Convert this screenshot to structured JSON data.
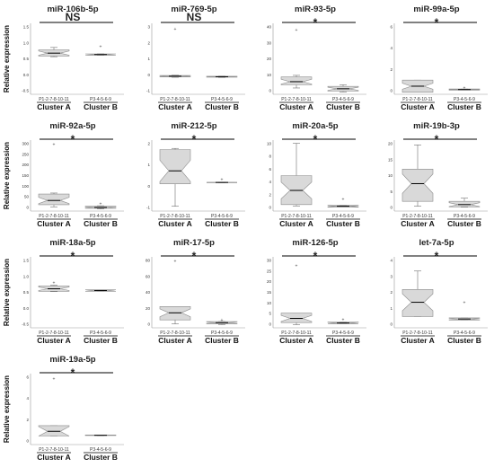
{
  "panels": [
    {
      "title": "miR-106b-5p",
      "sig": "NS",
      "yticks": [
        "1.5",
        "1.0",
        "0.5",
        "0.0",
        "-0.5"
      ],
      "ylim": [
        -0.5,
        1.5
      ],
      "boxes": [
        {
          "q1": 0.58,
          "q3": 0.75,
          "med": 0.66,
          "lo": 0.56,
          "hi": 0.82,
          "notch": 0.06
        },
        {
          "q1": 0.6,
          "q3": 0.64,
          "med": 0.62,
          "lo": 0.6,
          "hi": 0.64,
          "notch": 0.02
        }
      ],
      "outliers": [
        [
          1,
          0.85
        ]
      ],
      "ylabel": "Relative expression",
      "groups": [
        "P1-2-7-8-10-11",
        "P3-4-5-6-9"
      ],
      "clusters": [
        "Cluster A",
        "Cluster B"
      ]
    },
    {
      "title": "miR-769-5p",
      "sig": "NS",
      "yticks": [
        "3",
        "2",
        "1",
        "0",
        "-1"
      ],
      "ylim": [
        -1,
        3
      ],
      "boxes": [
        {
          "q1": -0.02,
          "q3": 0.06,
          "med": 0.02,
          "lo": -0.04,
          "hi": 0.08,
          "notch": 0.02
        },
        {
          "q1": -0.04,
          "q3": 0.02,
          "med": -0.01,
          "lo": -0.05,
          "hi": 0.03,
          "notch": 0.02
        }
      ],
      "outliers": [
        [
          0,
          2.7
        ]
      ],
      "ylabel": "",
      "groups": [
        "P1-2-7-8-10-11",
        "P3-4-5-6-9"
      ],
      "clusters": [
        "Cluster A",
        "Cluster B"
      ]
    },
    {
      "title": "miR-93-5p",
      "sig": "*",
      "yticks": [
        "40",
        "30",
        "20",
        "10",
        "0"
      ],
      "ylim": [
        -3,
        42
      ],
      "boxes": [
        {
          "q1": 3,
          "q3": 8,
          "med": 5,
          "lo": 1,
          "hi": 9,
          "notch": 1.5
        },
        {
          "q1": -1,
          "q3": 2,
          "med": 0.5,
          "lo": -1.5,
          "hi": 3,
          "notch": 1
        }
      ],
      "outliers": [
        [
          0,
          38
        ]
      ],
      "ylabel": "",
      "groups": [
        "P1-2-7-8-10-11",
        "P3-4-5-6-9"
      ],
      "clusters": [
        "Cluster A",
        "Cluster B"
      ]
    },
    {
      "title": "miR-99a-5p",
      "sig": "*",
      "yticks": [
        "6",
        "4",
        "2",
        "0"
      ],
      "ylim": [
        -0.5,
        6.5
      ],
      "boxes": [
        {
          "q1": -0.3,
          "q3": 0.9,
          "med": 0.3,
          "lo": -0.3,
          "hi": 0.9,
          "notch": 0.3
        },
        {
          "q1": -0.08,
          "q3": 0.02,
          "med": -0.03,
          "lo": -0.08,
          "hi": 0.02,
          "notch": 0.02
        }
      ],
      "outliers": [
        [
          1,
          0.15
        ]
      ],
      "ylabel": "",
      "groups": [
        "P1-2-7-8-10-11",
        "P3-4-5-6-9"
      ],
      "clusters": [
        "Cluster A",
        "Cluster B"
      ]
    },
    {
      "title": "miR-92a-5p",
      "sig": "*",
      "yticks": [
        "300",
        "250",
        "200",
        "150",
        "100",
        "50",
        "0"
      ],
      "ylim": [
        -15,
        320
      ],
      "boxes": [
        {
          "q1": 15,
          "q3": 65,
          "med": 35,
          "lo": 5,
          "hi": 70,
          "notch": 15
        },
        {
          "q1": -2,
          "q3": 8,
          "med": 2,
          "lo": -5,
          "hi": 10,
          "notch": 3
        }
      ],
      "outliers": [
        [
          0,
          300
        ],
        [
          1,
          20
        ]
      ],
      "ylabel": "Relative expression",
      "groups": [
        "P1-2-7-8-10-11",
        "P3-4-5-6-9"
      ],
      "clusters": [
        "Cluster A",
        "Cluster B"
      ]
    },
    {
      "title": "miR-212-5p",
      "sig": "*",
      "yticks": [
        "2",
        "1",
        "0",
        "-1"
      ],
      "ylim": [
        -1,
        2
      ],
      "boxes": [
        {
          "q1": 0.15,
          "q3": 1.6,
          "med": 0.7,
          "lo": -0.8,
          "hi": 1.65,
          "notch": 0.45
        },
        {
          "q1": 0.2,
          "q3": 0.22,
          "med": 0.21,
          "lo": 0.2,
          "hi": 0.22,
          "notch": 0.01
        }
      ],
      "outliers": [
        [
          1,
          0.35
        ]
      ],
      "ylabel": "",
      "groups": [
        "P1-2-7-8-10-11",
        "P3-4-5-6-9"
      ],
      "clusters": [
        "Cluster A",
        "Cluster B"
      ]
    },
    {
      "title": "miR-20a-5p",
      "sig": "*",
      "yticks": [
        "10",
        "8",
        "6",
        "4",
        "2",
        "0"
      ],
      "ylim": [
        -0.5,
        10.5
      ],
      "boxes": [
        {
          "q1": 0.5,
          "q3": 5,
          "med": 2.7,
          "lo": 0.3,
          "hi": 10,
          "notch": 1.3
        },
        {
          "q1": 0.1,
          "q3": 0.4,
          "med": 0.25,
          "lo": 0.1,
          "hi": 0.4,
          "notch": 0.1
        }
      ],
      "outliers": [
        [
          1,
          1.4
        ]
      ],
      "ylabel": "",
      "groups": [
        "P1-2-7-8-10-11",
        "P3-4-5-6-9"
      ],
      "clusters": [
        "Cluster A",
        "Cluster B"
      ]
    },
    {
      "title": "miR-19b-3p",
      "sig": "*",
      "yticks": [
        "20",
        "15",
        "10",
        "5",
        "0"
      ],
      "ylim": [
        -1,
        21
      ],
      "boxes": [
        {
          "q1": 2,
          "q3": 12,
          "med": 7.5,
          "lo": 0.5,
          "hi": 19.5,
          "notch": 3
        },
        {
          "q1": 0.3,
          "q3": 2,
          "med": 1,
          "lo": 0.2,
          "hi": 3,
          "notch": 0.6
        }
      ],
      "outliers": [],
      "ylabel": "",
      "groups": [
        "P1-2-7-8-10-11",
        "P3-4-5-6-9"
      ],
      "clusters": [
        "Cluster A",
        "Cluster B"
      ]
    },
    {
      "title": "miR-18a-5p",
      "sig": "*",
      "yticks": [
        "1.5",
        "1.0",
        "0.5",
        "0.0",
        "-0.5"
      ],
      "ylim": [
        -0.5,
        1.5
      ],
      "boxes": [
        {
          "q1": 0.53,
          "q3": 0.68,
          "med": 0.6,
          "lo": 0.52,
          "hi": 0.7,
          "notch": 0.05
        },
        {
          "q1": 0.53,
          "q3": 0.57,
          "med": 0.55,
          "lo": 0.53,
          "hi": 0.57,
          "notch": 0.02
        }
      ],
      "outliers": [
        [
          0,
          0.78
        ]
      ],
      "ylabel": "Relative expression",
      "groups": [
        "P1-2-7-8-10-11",
        "P3-4-5-6-9"
      ],
      "clusters": [
        "Cluster A",
        "Cluster B"
      ]
    },
    {
      "title": "miR-17-5p",
      "sig": "*",
      "yticks": [
        "80",
        "60",
        "40",
        "20",
        "0"
      ],
      "ylim": [
        -5,
        85
      ],
      "boxes": [
        {
          "q1": 5,
          "q3": 22,
          "med": 14,
          "lo": 0,
          "hi": 22,
          "notch": 5
        },
        {
          "q1": 0,
          "q3": 3,
          "med": 1.5,
          "lo": -1,
          "hi": 3,
          "notch": 1
        }
      ],
      "outliers": [
        [
          0,
          80
        ],
        [
          1,
          5
        ]
      ],
      "ylabel": "",
      "groups": [
        "P1-2-7-8-10-11",
        "P3-4-5-6-9"
      ],
      "clusters": [
        "Cluster A",
        "Cluster B"
      ]
    },
    {
      "title": "miR-126-5p",
      "sig": "*",
      "yticks": [
        "30",
        "25",
        "20",
        "15",
        "10",
        "5",
        "0"
      ],
      "ylim": [
        -2,
        32
      ],
      "boxes": [
        {
          "q1": 0.5,
          "q3": 5,
          "med": 2.5,
          "lo": -0.5,
          "hi": 5,
          "notch": 1.5
        },
        {
          "q1": 0,
          "q3": 0.8,
          "med": 0.3,
          "lo": 0,
          "hi": 0.8,
          "notch": 0.3
        }
      ],
      "outliers": [
        [
          0,
          28
        ],
        [
          1,
          2
        ]
      ],
      "ylabel": "",
      "groups": [
        "P1-2-7-8-10-11",
        "P3-4-5-6-9"
      ],
      "clusters": [
        "Cluster A",
        "Cluster B"
      ]
    },
    {
      "title": "let-7a-5p",
      "sig": "*",
      "yticks": [
        "4",
        "3",
        "2",
        "1",
        "0"
      ],
      "ylim": [
        -0.5,
        4.5
      ],
      "boxes": [
        {
          "q1": 0.3,
          "q3": 2.2,
          "med": 1.3,
          "lo": 0.3,
          "hi": 3.5,
          "notch": 0.6
        },
        {
          "q1": 0.05,
          "q3": 0.2,
          "med": 0.12,
          "lo": 0.05,
          "hi": 0.2,
          "notch": 0.05
        }
      ],
      "outliers": [
        [
          1,
          1.3
        ]
      ],
      "ylabel": "",
      "groups": [
        "P1-2-7-8-10-11",
        "P3-4-5-6-9"
      ],
      "clusters": [
        "Cluster A",
        "Cluster B"
      ]
    },
    {
      "title": "miR-19a-5p",
      "sig": "*",
      "yticks": [
        "6",
        "4",
        "2",
        "0"
      ],
      "ylim": [
        -1,
        6.5
      ],
      "boxes": [
        {
          "q1": -0.1,
          "q3": 1,
          "med": 0.4,
          "lo": -0.1,
          "hi": 1,
          "notch": 0.5
        },
        {
          "q1": -0.05,
          "q3": 0.02,
          "med": -0.02,
          "lo": -0.05,
          "hi": 0.02,
          "notch": 0.02
        }
      ],
      "outliers": [
        [
          0,
          6
        ]
      ],
      "ylabel": "Relative expression",
      "groups": [
        "P1-2-7-8-10-11",
        "P3-4-5-6-9"
      ],
      "clusters": [
        "Cluster A",
        "Cluster B"
      ]
    }
  ],
  "chart_data": [
    {
      "type": "box",
      "title": "miR-106b-5p",
      "categories": [
        "Cluster A",
        "Cluster B"
      ],
      "significance": "NS",
      "ylabel": "Relative expression",
      "ylim": [
        -0.5,
        1.5
      ],
      "series": [
        {
          "name": "Cluster A",
          "median": 0.66,
          "q1": 0.58,
          "q3": 0.75
        },
        {
          "name": "Cluster B",
          "median": 0.62,
          "q1": 0.6,
          "q3": 0.64
        }
      ]
    },
    {
      "type": "box",
      "title": "miR-769-5p",
      "categories": [
        "Cluster A",
        "Cluster B"
      ],
      "significance": "NS",
      "ylim": [
        -1,
        3
      ],
      "series": [
        {
          "name": "Cluster A",
          "median": 0.02,
          "q1": -0.02,
          "q3": 0.06
        },
        {
          "name": "Cluster B",
          "median": -0.01,
          "q1": -0.04,
          "q3": 0.02
        }
      ]
    },
    {
      "type": "box",
      "title": "miR-93-5p",
      "categories": [
        "Cluster A",
        "Cluster B"
      ],
      "significance": "*",
      "ylim": [
        -3,
        42
      ],
      "series": [
        {
          "name": "Cluster A",
          "median": 5,
          "q1": 3,
          "q3": 8
        },
        {
          "name": "Cluster B",
          "median": 0.5,
          "q1": -1,
          "q3": 2
        }
      ]
    },
    {
      "type": "box",
      "title": "miR-99a-5p",
      "categories": [
        "Cluster A",
        "Cluster B"
      ],
      "significance": "*",
      "ylim": [
        -0.5,
        6.5
      ],
      "series": [
        {
          "name": "Cluster A",
          "median": 0.3,
          "q1": -0.3,
          "q3": 0.9
        },
        {
          "name": "Cluster B",
          "median": -0.03,
          "q1": -0.08,
          "q3": 0.02
        }
      ]
    },
    {
      "type": "box",
      "title": "miR-92a-5p",
      "categories": [
        "Cluster A",
        "Cluster B"
      ],
      "significance": "*",
      "ylabel": "Relative expression",
      "ylim": [
        -15,
        320
      ],
      "series": [
        {
          "name": "Cluster A",
          "median": 35,
          "q1": 15,
          "q3": 65
        },
        {
          "name": "Cluster B",
          "median": 2,
          "q1": -2,
          "q3": 8
        }
      ]
    },
    {
      "type": "box",
      "title": "miR-212-5p",
      "categories": [
        "Cluster A",
        "Cluster B"
      ],
      "significance": "*",
      "ylim": [
        -1,
        2
      ],
      "series": [
        {
          "name": "Cluster A",
          "median": 0.7,
          "q1": 0.15,
          "q3": 1.6
        },
        {
          "name": "Cluster B",
          "median": 0.21,
          "q1": 0.2,
          "q3": 0.22
        }
      ]
    },
    {
      "type": "box",
      "title": "miR-20a-5p",
      "categories": [
        "Cluster A",
        "Cluster B"
      ],
      "significance": "*",
      "ylim": [
        -0.5,
        10.5
      ],
      "series": [
        {
          "name": "Cluster A",
          "median": 2.7,
          "q1": 0.5,
          "q3": 5
        },
        {
          "name": "Cluster B",
          "median": 0.25,
          "q1": 0.1,
          "q3": 0.4
        }
      ]
    },
    {
      "type": "box",
      "title": "miR-19b-3p",
      "categories": [
        "Cluster A",
        "Cluster B"
      ],
      "significance": "*",
      "ylim": [
        -1,
        21
      ],
      "series": [
        {
          "name": "Cluster A",
          "median": 7.5,
          "q1": 2,
          "q3": 12
        },
        {
          "name": "Cluster B",
          "median": 1,
          "q1": 0.3,
          "q3": 2
        }
      ]
    },
    {
      "type": "box",
      "title": "miR-18a-5p",
      "categories": [
        "Cluster A",
        "Cluster B"
      ],
      "significance": "*",
      "ylabel": "Relative expression",
      "ylim": [
        -0.5,
        1.5
      ],
      "series": [
        {
          "name": "Cluster A",
          "median": 0.6,
          "q1": 0.53,
          "q3": 0.68
        },
        {
          "name": "Cluster B",
          "median": 0.55,
          "q1": 0.53,
          "q3": 0.57
        }
      ]
    },
    {
      "type": "box",
      "title": "miR-17-5p",
      "categories": [
        "Cluster A",
        "Cluster B"
      ],
      "significance": "*",
      "ylim": [
        -5,
        85
      ],
      "series": [
        {
          "name": "Cluster A",
          "median": 14,
          "q1": 5,
          "q3": 22
        },
        {
          "name": "Cluster B",
          "median": 1.5,
          "q1": 0,
          "q3": 3
        }
      ]
    },
    {
      "type": "box",
      "title": "miR-126-5p",
      "categories": [
        "Cluster A",
        "Cluster B"
      ],
      "significance": "*",
      "ylim": [
        -2,
        32
      ],
      "series": [
        {
          "name": "Cluster A",
          "median": 2.5,
          "q1": 0.5,
          "q3": 5
        },
        {
          "name": "Cluster B",
          "median": 0.3,
          "q1": 0,
          "q3": 0.8
        }
      ]
    },
    {
      "type": "box",
      "title": "let-7a-5p",
      "categories": [
        "Cluster A",
        "Cluster B"
      ],
      "significance": "*",
      "ylim": [
        -0.5,
        4.5
      ],
      "series": [
        {
          "name": "Cluster A",
          "median": 1.3,
          "q1": 0.3,
          "q3": 2.2
        },
        {
          "name": "Cluster B",
          "median": 0.12,
          "q1": 0.05,
          "q3": 0.2
        }
      ]
    },
    {
      "type": "box",
      "title": "miR-19a-5p",
      "categories": [
        "Cluster A",
        "Cluster B"
      ],
      "significance": "*",
      "ylabel": "Relative expression",
      "ylim": [
        -1,
        6.5
      ],
      "series": [
        {
          "name": "Cluster A",
          "median": 0.4,
          "q1": -0.1,
          "q3": 1
        },
        {
          "name": "Cluster B",
          "median": -0.02,
          "q1": -0.05,
          "q3": 0.02
        }
      ]
    }
  ],
  "colors": {
    "box_fill": "#d9d9d9",
    "box_stroke": "#8c8c8c",
    "line": "#000000"
  }
}
